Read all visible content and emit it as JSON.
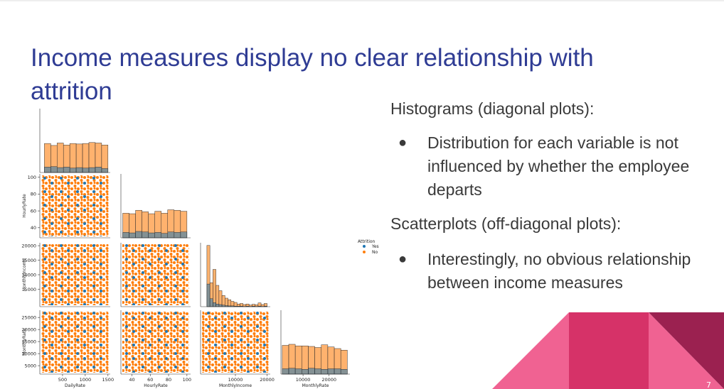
{
  "title": "Income measures display no clear relationship with attrition",
  "body": {
    "heading_1": "Histograms (diagonal plots):",
    "bullet_1": "Distribution for each variable is not influenced by whether the employee departs",
    "heading_2": "Scatterplots (off-diagonal plots):",
    "bullet_2": "Interestingly, no obvious relationship between income measures"
  },
  "page_number": "7",
  "pairplot": {
    "legend_title": "Attrition",
    "series": [
      {
        "name": "Yes",
        "color": "#1f77b4"
      },
      {
        "name": "No",
        "color": "#ff7f0e"
      }
    ],
    "variables": [
      {
        "name": "DailyRate",
        "lim": [
          0,
          1550
        ],
        "xticks": [
          500,
          1000,
          1500
        ],
        "yticks": [],
        "hist": {
          "ylim": [
            0,
            260
          ],
          "bins": [
            100,
            240,
            380,
            520,
            660,
            800,
            940,
            1080,
            1220,
            1360,
            1500
          ],
          "no": [
            118,
            110,
            120,
            112,
            118,
            116,
            118,
            122,
            120,
            112
          ],
          "yes": [
            22,
            24,
            20,
            22,
            18,
            20,
            18,
            20,
            22,
            16
          ]
        }
      },
      {
        "name": "HourlyRate",
        "lim": [
          28,
          104
        ],
        "xticks": [
          40,
          60,
          80,
          100
        ],
        "yticks": [
          40,
          60,
          80,
          100
        ],
        "hist": {
          "ylim": [
            0,
            260
          ],
          "bins": [
            30,
            37,
            44,
            51,
            58,
            65,
            72,
            79,
            86,
            93,
            100
          ],
          "no": [
            100,
            98,
            112,
            106,
            98,
            108,
            100,
            114,
            112,
            108
          ],
          "yes": [
            22,
            20,
            26,
            24,
            20,
            22,
            18,
            24,
            22,
            24
          ]
        }
      },
      {
        "name": "MonthlyIncome",
        "lim": [
          -1000,
          21000
        ],
        "xticks": [
          10000,
          20000
        ],
        "yticks": [
          5000,
          10000,
          15000,
          20000
        ],
        "hist": {
          "ylim": [
            0,
            240
          ],
          "bins": [
            1000,
            1950,
            2900,
            3850,
            4800,
            5750,
            6700,
            7650,
            8600,
            9550,
            10500,
            11450,
            12400,
            13350,
            14300,
            15250,
            16200,
            17150,
            18100,
            19050,
            20000
          ],
          "no": [
            230,
            90,
            140,
            80,
            60,
            42,
            32,
            26,
            20,
            16,
            10,
            12,
            8,
            10,
            6,
            9,
            7,
            14,
            8,
            12
          ],
          "yes": [
            85,
            30,
            15,
            10,
            8,
            6,
            4,
            3,
            3,
            2,
            2,
            2,
            1,
            2,
            1,
            2,
            1,
            2,
            1,
            2
          ]
        }
      },
      {
        "name": "MonthlyRate",
        "lim": [
          1500,
          28000
        ],
        "xticks": [
          10000,
          20000
        ],
        "yticks": [
          5000,
          10000,
          15000,
          20000,
          25000
        ],
        "hist": {
          "ylim": [
            0,
            240
          ],
          "bins": [
            2000,
            4500,
            7000,
            9500,
            12000,
            14500,
            17000,
            19500,
            22000,
            24500,
            27000
          ],
          "no": [
            108,
            112,
            106,
            106,
            104,
            100,
            110,
            102,
            96,
            90
          ],
          "yes": [
            20,
            22,
            20,
            18,
            22,
            20,
            18,
            20,
            20,
            18
          ]
        }
      }
    ]
  }
}
